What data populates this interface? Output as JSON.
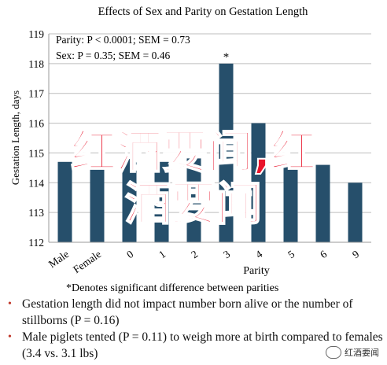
{
  "chart_data": {
    "type": "bar",
    "title": "Effects of Sex and Parity on Gestation Length",
    "ylabel": "Gestation Length, days",
    "xlabel": "Parity",
    "ylim": [
      112,
      119
    ],
    "yticks": [
      112,
      113,
      114,
      115,
      116,
      117,
      118,
      119
    ],
    "categories": [
      "Male",
      "Female",
      "0",
      "1",
      "2",
      "3",
      "4",
      "5",
      "6",
      "9"
    ],
    "values": [
      114.7,
      114.6,
      114.8,
      114.7,
      114.9,
      118.0,
      116.0,
      114.6,
      114.6,
      114.0
    ],
    "bar_color": "#264f6b",
    "annotations": [
      "Parity: P < 0.0001; SEM = 0.73",
      "Sex: P = 0.35; SEM = 0.46"
    ],
    "marked_category": "3",
    "marker": "*",
    "footnote": "*Denotes significant difference between parities"
  },
  "bullets": [
    "Gestation length did not impact number born alive or the number of stillborns (P = 0.16)",
    "Male piglets tented (P = 0.11) to weigh more at birth compared to females (3.4 vs. 3.1 lbs)"
  ],
  "overlay": {
    "line1": "红酒要闻,红",
    "line2": "酒要闻"
  },
  "watermark": "红酒要闻"
}
